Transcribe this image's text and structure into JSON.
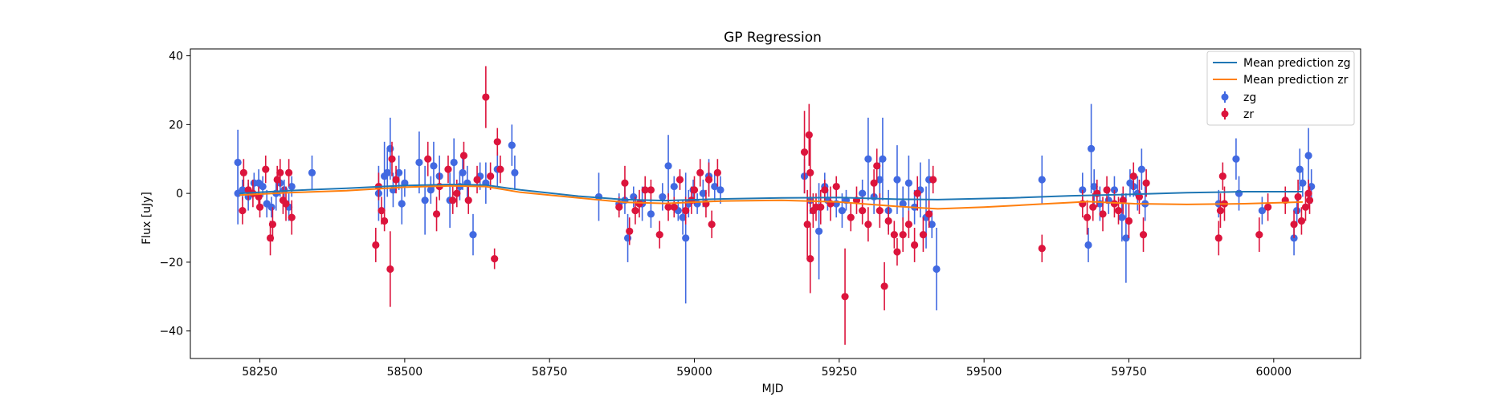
{
  "chart_data": {
    "type": "scatter",
    "title": "GP Regression",
    "xlabel": "MJD",
    "ylabel": "Flux [uJy]",
    "xlim": [
      58130,
      60150
    ],
    "ylim": [
      -48,
      42
    ],
    "xticks": [
      58250,
      58500,
      58750,
      59000,
      59250,
      59500,
      59750,
      60000
    ],
    "yticks": [
      -40,
      -20,
      0,
      20,
      40
    ],
    "grid": false,
    "legend_position": "top-right",
    "series": [
      {
        "name": "Mean prediction zg",
        "kind": "line",
        "color": "#1f77b4",
        "points": [
          [
            58215,
            0.0
          ],
          [
            58300,
            0.8
          ],
          [
            58400,
            1.5
          ],
          [
            58500,
            2.3
          ],
          [
            58580,
            2.6
          ],
          [
            58640,
            2.4
          ],
          [
            58700,
            1.0
          ],
          [
            58800,
            -0.8
          ],
          [
            58880,
            -1.8
          ],
          [
            58950,
            -2.1
          ],
          [
            59050,
            -1.6
          ],
          [
            59150,
            -1.3
          ],
          [
            59250,
            -1.2
          ],
          [
            59350,
            -1.7
          ],
          [
            59420,
            -1.8
          ],
          [
            59550,
            -1.3
          ],
          [
            59650,
            -0.7
          ],
          [
            59750,
            -0.3
          ],
          [
            59850,
            0.2
          ],
          [
            59950,
            0.5
          ],
          [
            60050,
            0.5
          ]
        ]
      },
      {
        "name": "Mean prediction zr",
        "kind": "line",
        "color": "#ff7f0e",
        "points": [
          [
            58215,
            -0.5
          ],
          [
            58300,
            0.2
          ],
          [
            58400,
            0.8
          ],
          [
            58500,
            1.8
          ],
          [
            58580,
            2.2
          ],
          [
            58640,
            2.0
          ],
          [
            58700,
            0.3
          ],
          [
            58800,
            -1.3
          ],
          [
            58880,
            -2.6
          ],
          [
            58950,
            -2.9
          ],
          [
            59050,
            -2.2
          ],
          [
            59150,
            -2.0
          ],
          [
            59250,
            -2.5
          ],
          [
            59350,
            -3.8
          ],
          [
            59420,
            -4.5
          ],
          [
            59500,
            -4.0
          ],
          [
            59600,
            -3.1
          ],
          [
            59680,
            -2.4
          ],
          [
            59760,
            -3.0
          ],
          [
            59850,
            -3.2
          ],
          [
            59950,
            -3.0
          ],
          [
            60050,
            -2.5
          ]
        ]
      },
      {
        "name": "zg",
        "kind": "errorbar",
        "color": "#4169e1",
        "points": [
          [
            58212,
            9,
            9.5
          ],
          [
            58212,
            0,
            9
          ],
          [
            58220,
            1,
            3
          ],
          [
            58230,
            -1,
            4
          ],
          [
            58240,
            3,
            3
          ],
          [
            58248,
            3,
            4
          ],
          [
            58255,
            2,
            3
          ],
          [
            58262,
            -3,
            4
          ],
          [
            58270,
            -4,
            3
          ],
          [
            58278,
            0,
            5
          ],
          [
            58285,
            3,
            4
          ],
          [
            58292,
            1,
            3
          ],
          [
            58300,
            -4,
            4
          ],
          [
            58305,
            2,
            3
          ],
          [
            58340,
            6,
            5
          ],
          [
            58455,
            0,
            8
          ],
          [
            58465,
            5,
            10
          ],
          [
            58475,
            13,
            9
          ],
          [
            58470,
            6,
            7
          ],
          [
            58480,
            1,
            5
          ],
          [
            58490,
            6,
            5
          ],
          [
            58495,
            -3,
            6
          ],
          [
            58500,
            3,
            4
          ],
          [
            58525,
            9,
            9
          ],
          [
            58535,
            -2,
            10
          ],
          [
            58545,
            1,
            4
          ],
          [
            58550,
            8,
            7
          ],
          [
            58560,
            5,
            6
          ],
          [
            58578,
            -2,
            8
          ],
          [
            58585,
            9,
            7
          ],
          [
            58595,
            2,
            4
          ],
          [
            58600,
            6,
            5
          ],
          [
            58608,
            3,
            5
          ],
          [
            58618,
            -12,
            6
          ],
          [
            58630,
            5,
            4
          ],
          [
            58640,
            3,
            6
          ],
          [
            58660,
            7,
            5
          ],
          [
            58685,
            14,
            6
          ],
          [
            58690,
            6,
            5
          ],
          [
            58835,
            -1,
            7
          ],
          [
            58870,
            -3,
            3
          ],
          [
            58880,
            -2,
            4
          ],
          [
            58885,
            -13,
            7
          ],
          [
            58895,
            -1,
            3
          ],
          [
            58910,
            -3,
            5
          ],
          [
            58925,
            -6,
            4
          ],
          [
            58945,
            -1,
            4
          ],
          [
            58955,
            8,
            9
          ],
          [
            58965,
            2,
            3
          ],
          [
            58972,
            -5,
            3
          ],
          [
            58980,
            -7,
            5
          ],
          [
            58985,
            -13,
            19
          ],
          [
            58990,
            -3,
            4
          ],
          [
            58998,
            1,
            3
          ],
          [
            59005,
            -3,
            3
          ],
          [
            59015,
            0,
            4
          ],
          [
            59025,
            5,
            5
          ],
          [
            59035,
            2,
            4
          ],
          [
            59045,
            1,
            4
          ],
          [
            59190,
            5,
            5
          ],
          [
            59200,
            -2,
            4
          ],
          [
            59215,
            -11,
            14
          ],
          [
            59225,
            2,
            4
          ],
          [
            59230,
            -2,
            3
          ],
          [
            59245,
            -3,
            4
          ],
          [
            59255,
            -5,
            5
          ],
          [
            59262,
            -2,
            3
          ],
          [
            59290,
            0,
            4
          ],
          [
            59300,
            10,
            12
          ],
          [
            59310,
            -1,
            5
          ],
          [
            59320,
            4,
            6
          ],
          [
            59325,
            10,
            12
          ],
          [
            59335,
            -5,
            6
          ],
          [
            59350,
            4,
            10
          ],
          [
            59360,
            -3,
            5
          ],
          [
            59370,
            3,
            8
          ],
          [
            59380,
            -4,
            5
          ],
          [
            59390,
            1,
            8
          ],
          [
            59400,
            -7,
            9
          ],
          [
            59405,
            4,
            6
          ],
          [
            59410,
            -9,
            4
          ],
          [
            59418,
            -22,
            12
          ],
          [
            59600,
            4,
            7
          ],
          [
            59670,
            1,
            5
          ],
          [
            59680,
            -15,
            5
          ],
          [
            59685,
            13,
            13
          ],
          [
            59690,
            2,
            5
          ],
          [
            59700,
            -3,
            5
          ],
          [
            59715,
            -2,
            4
          ],
          [
            59725,
            1,
            4
          ],
          [
            59738,
            -7,
            7
          ],
          [
            59745,
            -13,
            13
          ],
          [
            59752,
            3,
            4
          ],
          [
            59758,
            2,
            3
          ],
          [
            59765,
            0,
            5
          ],
          [
            59772,
            7,
            6
          ],
          [
            59778,
            -3,
            5
          ],
          [
            59905,
            -3,
            4
          ],
          [
            59935,
            10,
            6
          ],
          [
            59940,
            0,
            5
          ],
          [
            59980,
            -5,
            4
          ],
          [
            60035,
            -13,
            5
          ],
          [
            60040,
            -5,
            4
          ],
          [
            60045,
            7,
            6
          ],
          [
            60050,
            3,
            4
          ],
          [
            60060,
            11,
            8
          ],
          [
            60065,
            2,
            5
          ]
        ]
      },
      {
        "name": "zr",
        "kind": "errorbar",
        "color": "#dc143c",
        "points": [
          [
            58222,
            6,
            4
          ],
          [
            58220,
            -5,
            4
          ],
          [
            58230,
            1,
            3
          ],
          [
            58238,
            0,
            4
          ],
          [
            58248,
            -1,
            3
          ],
          [
            58250,
            -4,
            3
          ],
          [
            58260,
            7,
            4
          ],
          [
            58268,
            -13,
            5
          ],
          [
            58272,
            -9,
            5
          ],
          [
            58280,
            4,
            4
          ],
          [
            58285,
            6,
            4
          ],
          [
            58290,
            -2,
            4
          ],
          [
            58295,
            -3,
            5
          ],
          [
            58300,
            6,
            4
          ],
          [
            58305,
            -7,
            5
          ],
          [
            58450,
            -15,
            5
          ],
          [
            58455,
            2,
            4
          ],
          [
            58460,
            -5,
            4
          ],
          [
            58465,
            -8,
            3
          ],
          [
            58475,
            -22,
            11
          ],
          [
            58478,
            10,
            5
          ],
          [
            58485,
            4,
            4
          ],
          [
            58540,
            10,
            5
          ],
          [
            58555,
            -6,
            5
          ],
          [
            58560,
            2,
            4
          ],
          [
            58575,
            7,
            4
          ],
          [
            58583,
            -2,
            4
          ],
          [
            58590,
            0,
            4
          ],
          [
            58602,
            11,
            4
          ],
          [
            58610,
            -2,
            4
          ],
          [
            58625,
            4,
            4
          ],
          [
            58640,
            28,
            9
          ],
          [
            58648,
            5,
            4
          ],
          [
            58655,
            -19,
            3
          ],
          [
            58660,
            15,
            4
          ],
          [
            58665,
            7,
            4
          ],
          [
            58870,
            -4,
            3
          ],
          [
            58880,
            3,
            5
          ],
          [
            58888,
            -11,
            4
          ],
          [
            58898,
            -5,
            4
          ],
          [
            58905,
            -3,
            4
          ],
          [
            58915,
            1,
            4
          ],
          [
            58925,
            1,
            3
          ],
          [
            58940,
            -12,
            4
          ],
          [
            58955,
            -4,
            4
          ],
          [
            58965,
            -4,
            3
          ],
          [
            58975,
            4,
            3
          ],
          [
            58985,
            -5,
            4
          ],
          [
            58995,
            -2,
            4
          ],
          [
            59000,
            1,
            4
          ],
          [
            59010,
            6,
            4
          ],
          [
            59020,
            -3,
            4
          ],
          [
            59025,
            4,
            5
          ],
          [
            59030,
            -9,
            4
          ],
          [
            59040,
            6,
            4
          ],
          [
            59190,
            12,
            12
          ],
          [
            59195,
            -9,
            10
          ],
          [
            59198,
            17,
            9
          ],
          [
            59200,
            6,
            10
          ],
          [
            59200,
            -19,
            10
          ],
          [
            59205,
            -5,
            5
          ],
          [
            59210,
            -4,
            4
          ],
          [
            59218,
            -4,
            5
          ],
          [
            59225,
            1,
            3
          ],
          [
            59235,
            -3,
            5
          ],
          [
            59245,
            2,
            3
          ],
          [
            59260,
            -30,
            14
          ],
          [
            59270,
            -7,
            4
          ],
          [
            59280,
            -2,
            4
          ],
          [
            59290,
            -5,
            4
          ],
          [
            59300,
            -9,
            5
          ],
          [
            59310,
            3,
            4
          ],
          [
            59315,
            8,
            5
          ],
          [
            59320,
            -5,
            5
          ],
          [
            59328,
            -27,
            7
          ],
          [
            59335,
            -8,
            4
          ],
          [
            59345,
            -12,
            4
          ],
          [
            59350,
            -17,
            4
          ],
          [
            59360,
            -12,
            5
          ],
          [
            59370,
            -9,
            4
          ],
          [
            59380,
            -15,
            5
          ],
          [
            59385,
            0,
            5
          ],
          [
            59395,
            -12,
            5
          ],
          [
            59405,
            -6,
            4
          ],
          [
            59412,
            4,
            4
          ],
          [
            59600,
            -16,
            4
          ],
          [
            59670,
            -3,
            4
          ],
          [
            59678,
            -7,
            5
          ],
          [
            59688,
            -4,
            4
          ],
          [
            59695,
            0,
            4
          ],
          [
            59705,
            -6,
            5
          ],
          [
            59712,
            1,
            4
          ],
          [
            59725,
            -3,
            4
          ],
          [
            59732,
            -5,
            4
          ],
          [
            59740,
            -2,
            4
          ],
          [
            59750,
            -8,
            5
          ],
          [
            59758,
            5,
            4
          ],
          [
            59768,
            -1,
            5
          ],
          [
            59775,
            -12,
            5
          ],
          [
            59780,
            3,
            4
          ],
          [
            59905,
            -13,
            5
          ],
          [
            59908,
            -5,
            5
          ],
          [
            59912,
            5,
            4
          ],
          [
            59915,
            -3,
            5
          ],
          [
            59975,
            -12,
            5
          ],
          [
            59990,
            -4,
            4
          ],
          [
            60020,
            -2,
            4
          ],
          [
            60035,
            -9,
            4
          ],
          [
            60042,
            -1,
            5
          ],
          [
            60048,
            -8,
            4
          ],
          [
            60055,
            -4,
            4
          ],
          [
            60060,
            0,
            4
          ],
          [
            60062,
            -2,
            4
          ]
        ]
      }
    ]
  }
}
